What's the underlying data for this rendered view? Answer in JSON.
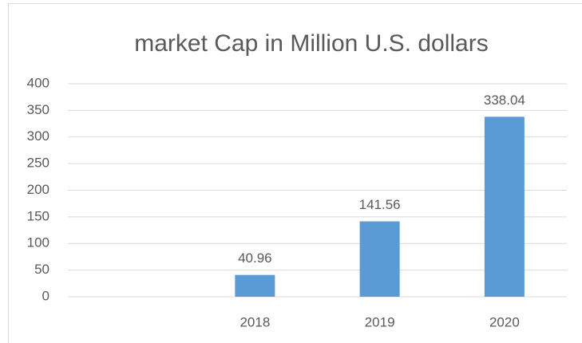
{
  "chart_data": {
    "type": "bar",
    "title": "market Cap in Million U.S. dollars",
    "categories": [
      null,
      "2018",
      "2019",
      "2020"
    ],
    "values": [
      null,
      40.96,
      141.56,
      338.04
    ],
    "color": "#5b9bd5",
    "ylim": [
      0,
      400
    ],
    "yticks": [
      0,
      50,
      100,
      150,
      200,
      250,
      300,
      350,
      400
    ],
    "grid": true
  }
}
